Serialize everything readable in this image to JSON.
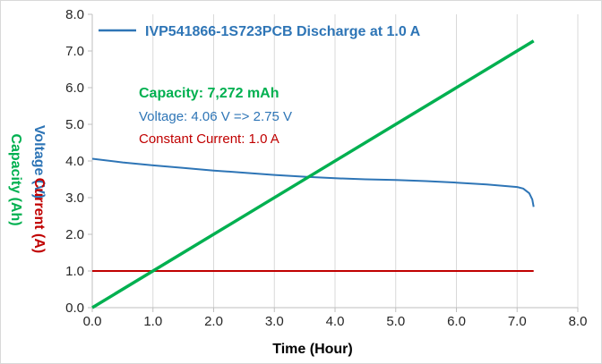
{
  "chart_data": {
    "type": "line",
    "title": "",
    "xlabel": "Time (Hour)",
    "ylabels": [
      {
        "text": "Voltage (V)",
        "color": "#2e75b6"
      },
      {
        "text": "Current (A)",
        "color": "#c00000"
      },
      {
        "text": "Capacity (Ah)",
        "color": "#00b050"
      }
    ],
    "xlim": [
      0,
      8
    ],
    "ylim": [
      0,
      8
    ],
    "x_ticks": [
      "0.0",
      "1.0",
      "2.0",
      "3.0",
      "4.0",
      "5.0",
      "6.0",
      "7.0",
      "8.0"
    ],
    "y_ticks": [
      "0.0",
      "1.0",
      "2.0",
      "3.0",
      "4.0",
      "5.0",
      "6.0",
      "7.0",
      "8.0"
    ],
    "grid": "vertical",
    "legend": {
      "position": "top",
      "label": "IVP541866-1S723PCB Discharge at 1.0 A",
      "color": "#2e75b6"
    },
    "annotations": [
      {
        "text": "Capacity: 7,272 mAh",
        "color": "#00b050",
        "bold": true
      },
      {
        "text": "Voltage: 4.06 V => 2.75 V",
        "color": "#2e75b6",
        "bold": false
      },
      {
        "text": "Constant Current: 1.0 A",
        "color": "#c00000",
        "bold": false
      }
    ],
    "series": [
      {
        "name": "IVP541866-1S723PCB Discharge at 1.0 A",
        "quantity": "Voltage",
        "color": "#2e75b6",
        "x": [
          0,
          0.5,
          1.0,
          1.5,
          2.0,
          2.5,
          3.0,
          3.5,
          4.0,
          4.5,
          5.0,
          5.5,
          6.0,
          6.5,
          7.0,
          7.1,
          7.2,
          7.25,
          7.272
        ],
        "y": [
          4.06,
          3.96,
          3.88,
          3.81,
          3.74,
          3.68,
          3.62,
          3.57,
          3.53,
          3.5,
          3.48,
          3.45,
          3.41,
          3.36,
          3.29,
          3.25,
          3.12,
          2.95,
          2.75
        ]
      },
      {
        "quantity": "Current",
        "color": "#c00000",
        "x": [
          0,
          7.272
        ],
        "y": [
          1.0,
          1.0
        ]
      },
      {
        "quantity": "Capacity",
        "color": "#00b050",
        "x": [
          0,
          7.272
        ],
        "y": [
          0,
          7.272
        ]
      }
    ]
  }
}
